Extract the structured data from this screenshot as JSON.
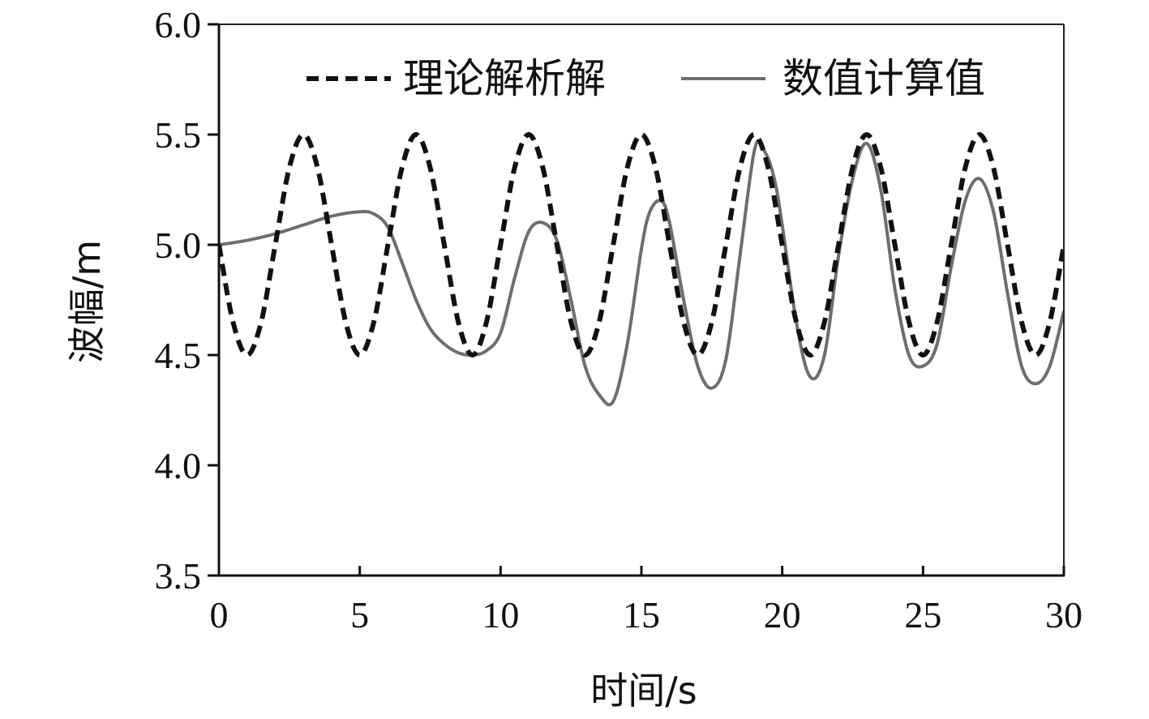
{
  "chart_data": {
    "type": "line",
    "xlabel": "时间/s",
    "ylabel": "波幅/m",
    "xlim": [
      0,
      30
    ],
    "ylim": [
      3.5,
      6.0
    ],
    "x_ticks": [
      0,
      5,
      10,
      15,
      20,
      25,
      30
    ],
    "y_ticks": [
      "3.5",
      "4.0",
      "4.5",
      "5.0",
      "5.5",
      "6.0"
    ],
    "grid": false,
    "legend_position": "top",
    "series": [
      {
        "name": "理论解析解",
        "style": "dashed",
        "color": "#111111",
        "x": [
          0,
          0.5,
          1,
          1.5,
          2,
          2.5,
          3,
          3.5,
          4,
          4.5,
          5,
          5.5,
          6,
          6.5,
          7,
          7.5,
          8,
          8.5,
          9,
          9.5,
          10,
          10.5,
          11,
          11.5,
          12,
          12.5,
          13,
          13.5,
          14,
          14.5,
          15,
          15.5,
          16,
          16.5,
          17,
          17.5,
          18,
          18.5,
          19,
          19.5,
          20,
          20.5,
          21,
          21.5,
          22,
          22.5,
          23,
          23.5,
          24,
          24.5,
          25,
          25.5,
          26,
          26.5,
          27,
          27.5,
          28,
          28.5,
          29,
          29.5,
          30
        ],
        "values": [
          5.0,
          4.65,
          4.5,
          4.65,
          5.0,
          5.35,
          5.5,
          5.35,
          5.0,
          4.65,
          4.5,
          4.65,
          5.0,
          5.35,
          5.5,
          5.35,
          5.0,
          4.65,
          4.5,
          4.65,
          5.0,
          5.35,
          5.5,
          5.35,
          5.0,
          4.65,
          4.5,
          4.65,
          5.0,
          5.35,
          5.5,
          5.35,
          5.0,
          4.65,
          4.5,
          4.65,
          5.0,
          5.35,
          5.5,
          5.35,
          5.0,
          4.65,
          4.5,
          4.65,
          5.0,
          5.35,
          5.5,
          5.35,
          5.0,
          4.65,
          4.5,
          4.65,
          5.0,
          5.35,
          5.5,
          5.35,
          5.0,
          4.65,
          4.5,
          4.65,
          5.0
        ]
      },
      {
        "name": "数值计算值",
        "style": "solid",
        "color": "#6e6e6e",
        "x": [
          0,
          1,
          2,
          3,
          4,
          5,
          5.5,
          6,
          6.5,
          7,
          7.5,
          8,
          8.5,
          9,
          9.5,
          10,
          10.5,
          11,
          11.5,
          12,
          12.5,
          13,
          13.5,
          14,
          14.5,
          15,
          15.3,
          15.7,
          16,
          16.5,
          17,
          17.5,
          18,
          18.5,
          19,
          19.3,
          19.8,
          20.5,
          21,
          21.5,
          22,
          22.5,
          23,
          23.5,
          24,
          24.5,
          25,
          25.5,
          26,
          26.5,
          27,
          27.5,
          28,
          28.5,
          29,
          29.5,
          30
        ],
        "values": [
          5.0,
          5.02,
          5.05,
          5.09,
          5.13,
          5.15,
          5.14,
          5.08,
          4.92,
          4.75,
          4.62,
          4.55,
          4.51,
          4.5,
          4.52,
          4.6,
          4.85,
          5.06,
          5.1,
          5.02,
          4.75,
          4.45,
          4.32,
          4.29,
          4.55,
          4.98,
          5.15,
          5.2,
          5.1,
          4.75,
          4.45,
          4.35,
          4.48,
          4.95,
          5.42,
          5.44,
          5.25,
          4.65,
          4.4,
          4.5,
          4.95,
          5.3,
          5.46,
          5.25,
          4.8,
          4.5,
          4.45,
          4.55,
          4.9,
          5.2,
          5.3,
          5.15,
          4.78,
          4.45,
          4.37,
          4.45,
          4.7
        ]
      }
    ]
  }
}
